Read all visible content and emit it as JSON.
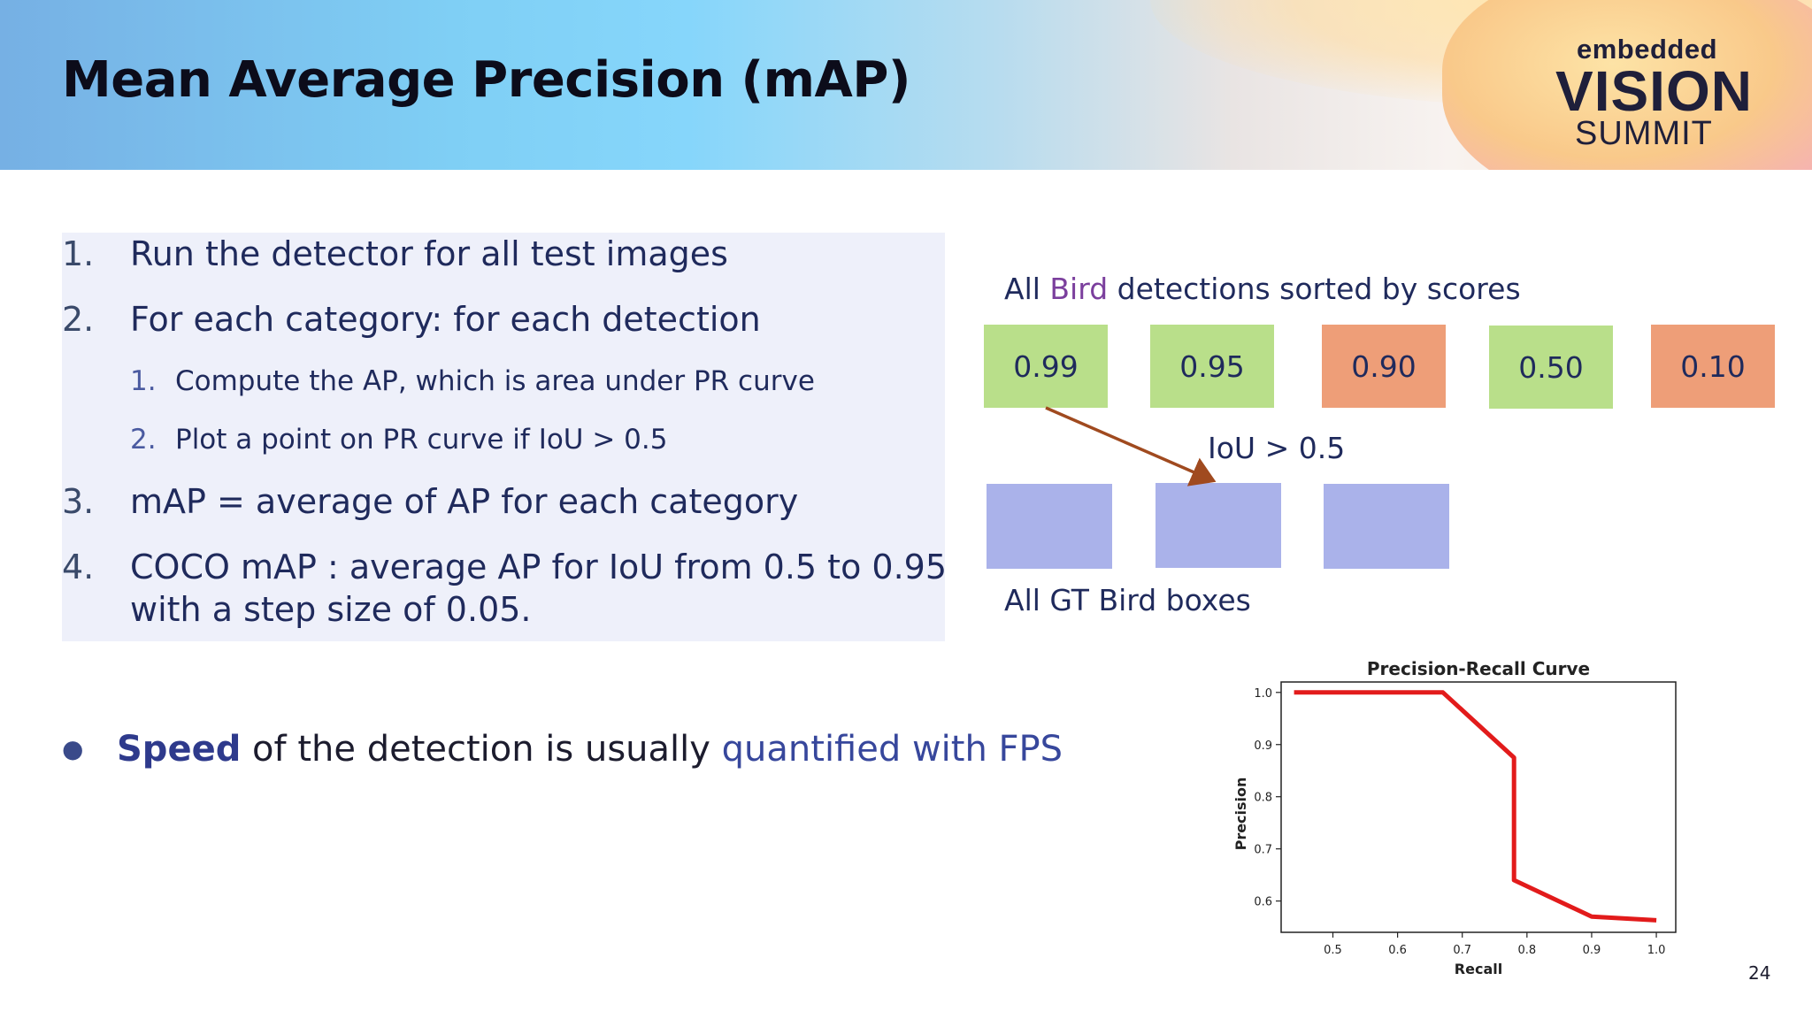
{
  "slide": {
    "title": "Mean Average Precision (mAP)",
    "page_number": "24"
  },
  "logo": {
    "line1": "embedded",
    "line2": "VISION",
    "line3": "SUMMIT"
  },
  "steps": [
    {
      "num": "1.",
      "text": "Run the detector for all test images"
    },
    {
      "num": "2.",
      "text": "For each category: for each detection"
    },
    {
      "num": "1.",
      "text": "Compute the AP, which is area under PR curve"
    },
    {
      "num": "2.",
      "text": "Plot a point on PR curve if IoU > 0.5"
    },
    {
      "num": "3.",
      "text": "mAP = average of AP for each category"
    },
    {
      "num": "4.",
      "text": "COCO mAP : average AP for IoU from 0.5 to 0.95",
      "text2": "with a step size of 0.05."
    }
  ],
  "bullet": {
    "bold": "Speed",
    "middle": " of the detection is usually ",
    "link": "quantified with FPS"
  },
  "diagram": {
    "sorted_label_prefix": "All ",
    "sorted_label_highlight": "Bird",
    "sorted_label_suffix": " detections sorted by scores",
    "scores": [
      {
        "value": "0.99",
        "status": "true-positive",
        "color": "#b9df8a"
      },
      {
        "value": "0.95",
        "status": "true-positive",
        "color": "#b9df8a"
      },
      {
        "value": "0.90",
        "status": "false-positive",
        "color": "#ee9e78"
      },
      {
        "value": "0.50",
        "status": "true-positive",
        "color": "#b9df8a"
      },
      {
        "value": "0.10",
        "status": "false-positive",
        "color": "#ee9e78"
      }
    ],
    "iou_label": "IoU > 0.5",
    "gt_label": "All GT Bird boxes",
    "gt_box_count": 3,
    "arrow_color": "#a04a1f",
    "gt_color": "#aab2ea"
  },
  "chart_data": {
    "type": "line",
    "title": "Precision-Recall Curve",
    "xlabel": "Recall",
    "ylabel": "Precision",
    "xlim": [
      0.42,
      1.03
    ],
    "ylim": [
      0.54,
      1.02
    ],
    "xticks": [
      "0.5",
      "0.6",
      "0.7",
      "0.8",
      "0.9",
      "1.0"
    ],
    "yticks": [
      "1.0",
      "0.9",
      "0.8",
      "0.7",
      "0.6"
    ],
    "series": [
      {
        "color": "#e21b1b",
        "x": [
          0.44,
          0.67,
          0.78,
          0.78,
          0.9,
          1.0
        ],
        "y": [
          1.0,
          1.0,
          0.875,
          0.64,
          0.57,
          0.563
        ]
      }
    ]
  }
}
